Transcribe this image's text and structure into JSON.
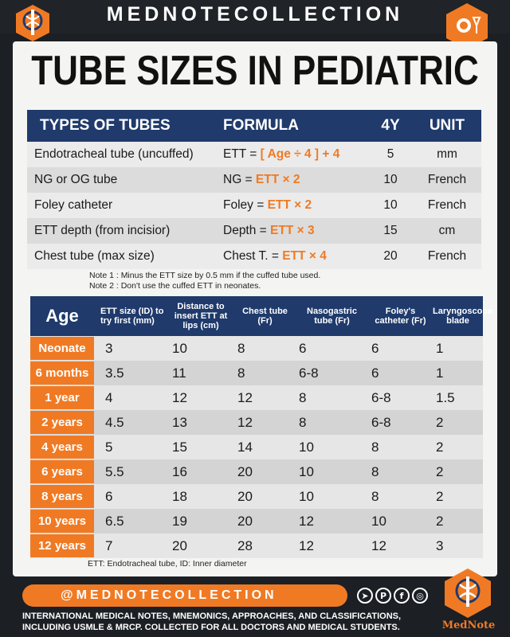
{
  "header": {
    "brand": "MEDNOTECOLLECTION"
  },
  "title": "TUBE SIZES IN PEDIATRIC",
  "tubes_table": {
    "headers": [
      "TYPES OF TUBES",
      "FORMULA",
      "4Y",
      "UNIT"
    ],
    "rows": [
      {
        "type": "Endotracheal tube (uncuffed)",
        "prefix": "ETT = ",
        "formula": "[ Age ÷ 4 ] + 4",
        "value": "5",
        "unit": "mm"
      },
      {
        "type": "NG or OG tube",
        "prefix": "NG = ",
        "formula": "ETT × 2",
        "value": "10",
        "unit": "French"
      },
      {
        "type": "Foley catheter",
        "prefix": "Foley = ",
        "formula": "ETT × 2",
        "value": "10",
        "unit": "French"
      },
      {
        "type": "ETT depth (from incisior)",
        "prefix": "Depth = ",
        "formula": "ETT × 3",
        "value": "15",
        "unit": "cm"
      },
      {
        "type": "Chest tube (max size)",
        "prefix": "Chest T. = ",
        "formula": "ETT × 4",
        "value": "20",
        "unit": "French"
      }
    ]
  },
  "notes": {
    "note1": "Note 1 : Minus the ETT size by 0.5 mm if the cuffed tube used.",
    "note2": "Note 2 : Don't use the cuffed ETT in neonates."
  },
  "age_table": {
    "headers": {
      "age": "Age",
      "ett_size": "ETT size (ID) to try first (mm)",
      "distance": "Distance to insert ETT at lips (cm)",
      "chest": "Chest tube (Fr)",
      "ng": "Nasogastric tube (Fr)",
      "foley": "Foley's catheter (Fr)",
      "laryngoscope": "Laryngoscope blade"
    },
    "rows": [
      {
        "age": "Neonate",
        "ett": "3",
        "dist": "10",
        "chest": "8",
        "ng": "6",
        "foley": "6",
        "blade": "1"
      },
      {
        "age": "6 months",
        "ett": "3.5",
        "dist": "11",
        "chest": "8",
        "ng": "6-8",
        "foley": "6",
        "blade": "1"
      },
      {
        "age": "1 year",
        "ett": "4",
        "dist": "12",
        "chest": "12",
        "ng": "8",
        "foley": "6-8",
        "blade": "1.5"
      },
      {
        "age": "2 years",
        "ett": "4.5",
        "dist": "13",
        "chest": "12",
        "ng": "8",
        "foley": "6-8",
        "blade": "2"
      },
      {
        "age": "4 years",
        "ett": "5",
        "dist": "15",
        "chest": "14",
        "ng": "10",
        "foley": "8",
        "blade": "2"
      },
      {
        "age": "6 years",
        "ett": "5.5",
        "dist": "16",
        "chest": "20",
        "ng": "10",
        "foley": "8",
        "blade": "2"
      },
      {
        "age": "8 years",
        "ett": "6",
        "dist": "18",
        "chest": "20",
        "ng": "10",
        "foley": "8",
        "blade": "2"
      },
      {
        "age": "10 years",
        "ett": "6.5",
        "dist": "19",
        "chest": "20",
        "ng": "12",
        "foley": "10",
        "blade": "2"
      },
      {
        "age": "12 years",
        "ett": "7",
        "dist": "20",
        "chest": "28",
        "ng": "12",
        "foley": "12",
        "blade": "3"
      }
    ]
  },
  "footnote": "ETT: Endotracheal tube, ID: Inner diameter",
  "footer": {
    "handle": "@MEDNOTECOLLECTION",
    "line1": "INTERNATIONAL MEDICAL NOTES, MNEMONICS, APPROACHES, AND CLASSIFICATIONS,",
    "line2": "INCLUDING USMLE & MRCP.  COLLECTED  FOR  ALL DOCTORS AND MEDICAL STUDENTS.",
    "logo_label": "MedNote",
    "social_icons": [
      "telegram-icon",
      "pinterest-icon",
      "facebook-icon",
      "instagram-icon"
    ]
  },
  "colors": {
    "accent": "#f07a24",
    "navy": "#1f3a6b",
    "background": "#1c1f24"
  }
}
